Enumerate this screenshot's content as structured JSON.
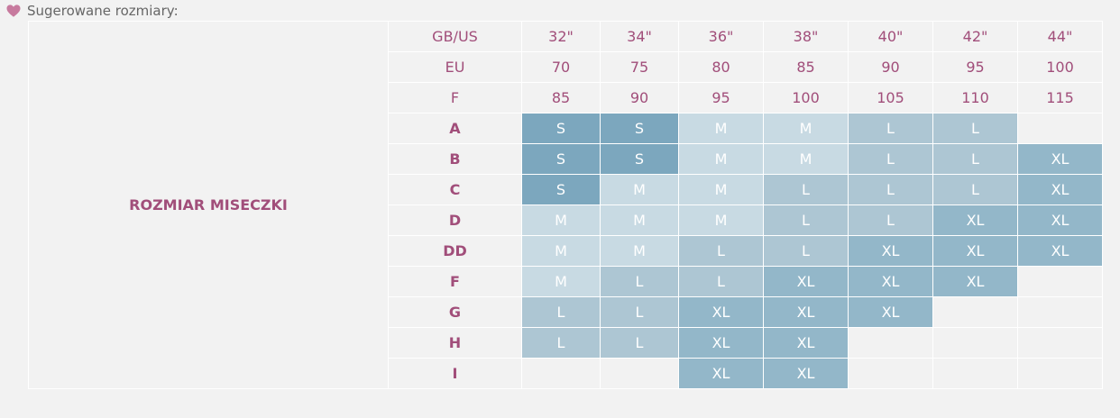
{
  "heading": {
    "icon": "heart-icon",
    "text": "Sugerowane rozmiary:",
    "icon_color": "#c77a9e"
  },
  "table": {
    "side_label": "ROZMIAR MISECZKI",
    "header_rows": [
      {
        "label": "GB/US",
        "values": [
          "32\"",
          "34\"",
          "36\"",
          "38\"",
          "40\"",
          "42\"",
          "44\""
        ]
      },
      {
        "label": "EU",
        "values": [
          "70",
          "75",
          "80",
          "85",
          "90",
          "95",
          "100"
        ]
      },
      {
        "label": "F",
        "values": [
          "85",
          "90",
          "95",
          "100",
          "105",
          "110",
          "115"
        ]
      }
    ],
    "cup_rows": [
      {
        "cup": "A",
        "sizes": [
          "S",
          "S",
          "M",
          "M",
          "L",
          "L",
          ""
        ]
      },
      {
        "cup": "B",
        "sizes": [
          "S",
          "S",
          "M",
          "M",
          "L",
          "L",
          "XL"
        ]
      },
      {
        "cup": "C",
        "sizes": [
          "S",
          "M",
          "M",
          "L",
          "L",
          "L",
          "XL"
        ]
      },
      {
        "cup": "D",
        "sizes": [
          "M",
          "M",
          "M",
          "L",
          "L",
          "XL",
          "XL"
        ]
      },
      {
        "cup": "DD",
        "sizes": [
          "M",
          "M",
          "L",
          "L",
          "XL",
          "XL",
          "XL"
        ]
      },
      {
        "cup": "F",
        "sizes": [
          "M",
          "L",
          "L",
          "XL",
          "XL",
          "XL",
          ""
        ]
      },
      {
        "cup": "G",
        "sizes": [
          "L",
          "L",
          "XL",
          "XL",
          "XL",
          "",
          ""
        ]
      },
      {
        "cup": "H",
        "sizes": [
          "L",
          "L",
          "XL",
          "XL",
          "",
          "",
          ""
        ]
      },
      {
        "cup": "I",
        "sizes": [
          "",
          "",
          "XL",
          "XL",
          "",
          "",
          ""
        ]
      }
    ]
  },
  "colors": {
    "S": "#7ca7be",
    "M": "#c8dae3",
    "L": "#adc6d3",
    "XL": "#93b7c9",
    "label": "#a14e7a"
  }
}
